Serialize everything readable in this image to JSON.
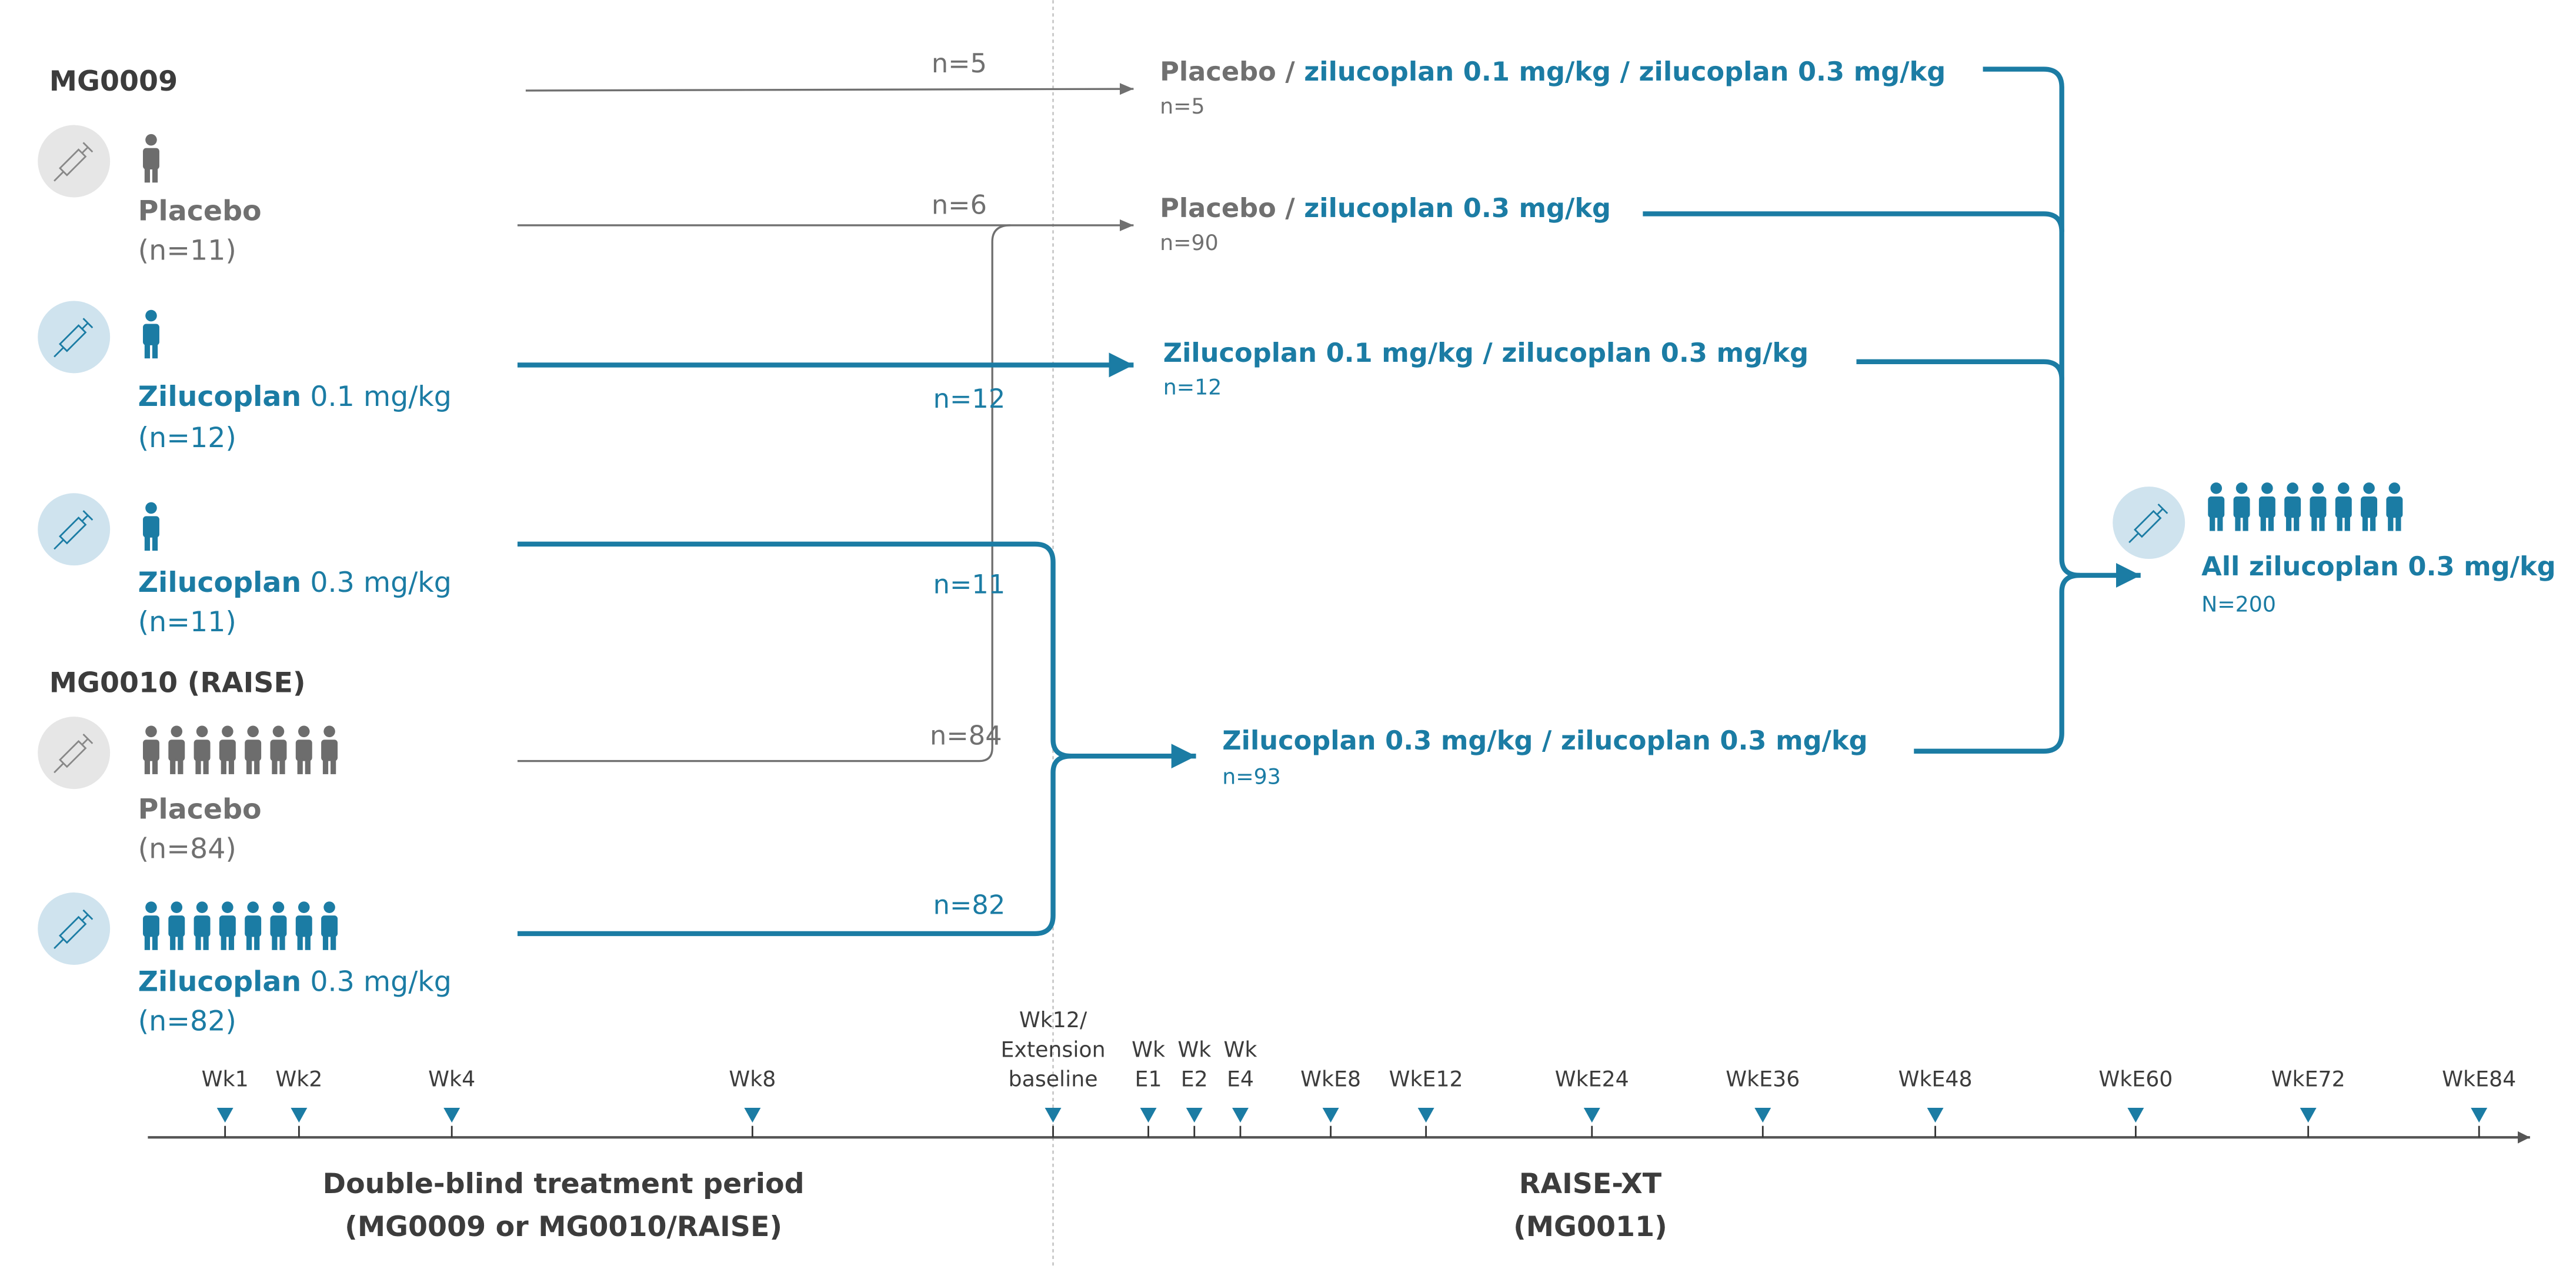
{
  "colors": {
    "blue": "#1b7ca4",
    "gray": "#707070",
    "dark": "#3c3c3c",
    "placebo_circle": "#e6e6e6",
    "drug_circle": "#cfe3ee"
  },
  "studies": [
    {
      "title": "MG0009",
      "arms": [
        {
          "name": "Placebo",
          "dose": "",
          "n": "(n=11)",
          "type": "placebo",
          "people": 1
        },
        {
          "name": "Zilucoplan",
          "dose": " 0.1 mg/kg",
          "n": "(n=12)",
          "type": "drug",
          "people": 1
        },
        {
          "name": "Zilucoplan",
          "dose": " 0.3 mg/kg",
          "n": "(n=11)",
          "type": "drug",
          "people": 1
        }
      ]
    },
    {
      "title": "MG0010 (RAISE)",
      "arms": [
        {
          "name": "Placebo",
          "dose": "",
          "n": "(n=84)",
          "type": "placebo",
          "people": 8
        },
        {
          "name": "Zilucoplan",
          "dose": " 0.3 mg/kg",
          "n": "(n=82)",
          "type": "drug",
          "people": 8
        }
      ]
    }
  ],
  "flows": [
    "n=5",
    "n=6",
    "n=12",
    "n=11",
    "n=84",
    "n=82"
  ],
  "extension_groups": [
    {
      "placebo": "Placebo",
      "sep": " / ",
      "rest": "zilucoplan 0.1 mg/kg / zilucoplan 0.3 mg/kg",
      "n": "n=5"
    },
    {
      "placebo": "Placebo",
      "sep": " / ",
      "rest": "zilucoplan 0.3 mg/kg",
      "n": "n=90"
    },
    {
      "placebo": "",
      "sep": "",
      "rest": "Zilucoplan 0.1 mg/kg / zilucoplan 0.3 mg/kg",
      "n": "n=12"
    },
    {
      "placebo": "",
      "sep": "",
      "rest": "Zilucoplan 0.3 mg/kg / zilucoplan 0.3 mg/kg",
      "n": "n=93"
    }
  ],
  "final": {
    "label": "All zilucoplan 0.3 mg/kg",
    "n": "N=200",
    "people": 8
  },
  "timeline": {
    "ticks": [
      {
        "lines": [
          "Wk1"
        ]
      },
      {
        "lines": [
          "Wk2"
        ]
      },
      {
        "lines": [
          "Wk4"
        ]
      },
      {
        "lines": [
          "Wk8"
        ]
      },
      {
        "lines": [
          "Wk12/",
          "Extension",
          "baseline"
        ]
      },
      {
        "lines": [
          "Wk",
          "E1"
        ]
      },
      {
        "lines": [
          "Wk",
          "E2"
        ]
      },
      {
        "lines": [
          "Wk",
          "E4"
        ]
      },
      {
        "lines": [
          "WkE8"
        ]
      },
      {
        "lines": [
          "WkE12"
        ]
      },
      {
        "lines": [
          "WkE24"
        ]
      },
      {
        "lines": [
          "WkE36"
        ]
      },
      {
        "lines": [
          "WkE48"
        ]
      },
      {
        "lines": [
          "WkE60"
        ]
      },
      {
        "lines": [
          "WkE72"
        ]
      },
      {
        "lines": [
          "WkE84"
        ]
      }
    ],
    "periods": [
      {
        "title": "Double-blind treatment period",
        "sub": "(MG0009 or MG0010/RAISE)"
      },
      {
        "title": "RAISE-XT",
        "sub": "(MG0011)"
      }
    ]
  }
}
